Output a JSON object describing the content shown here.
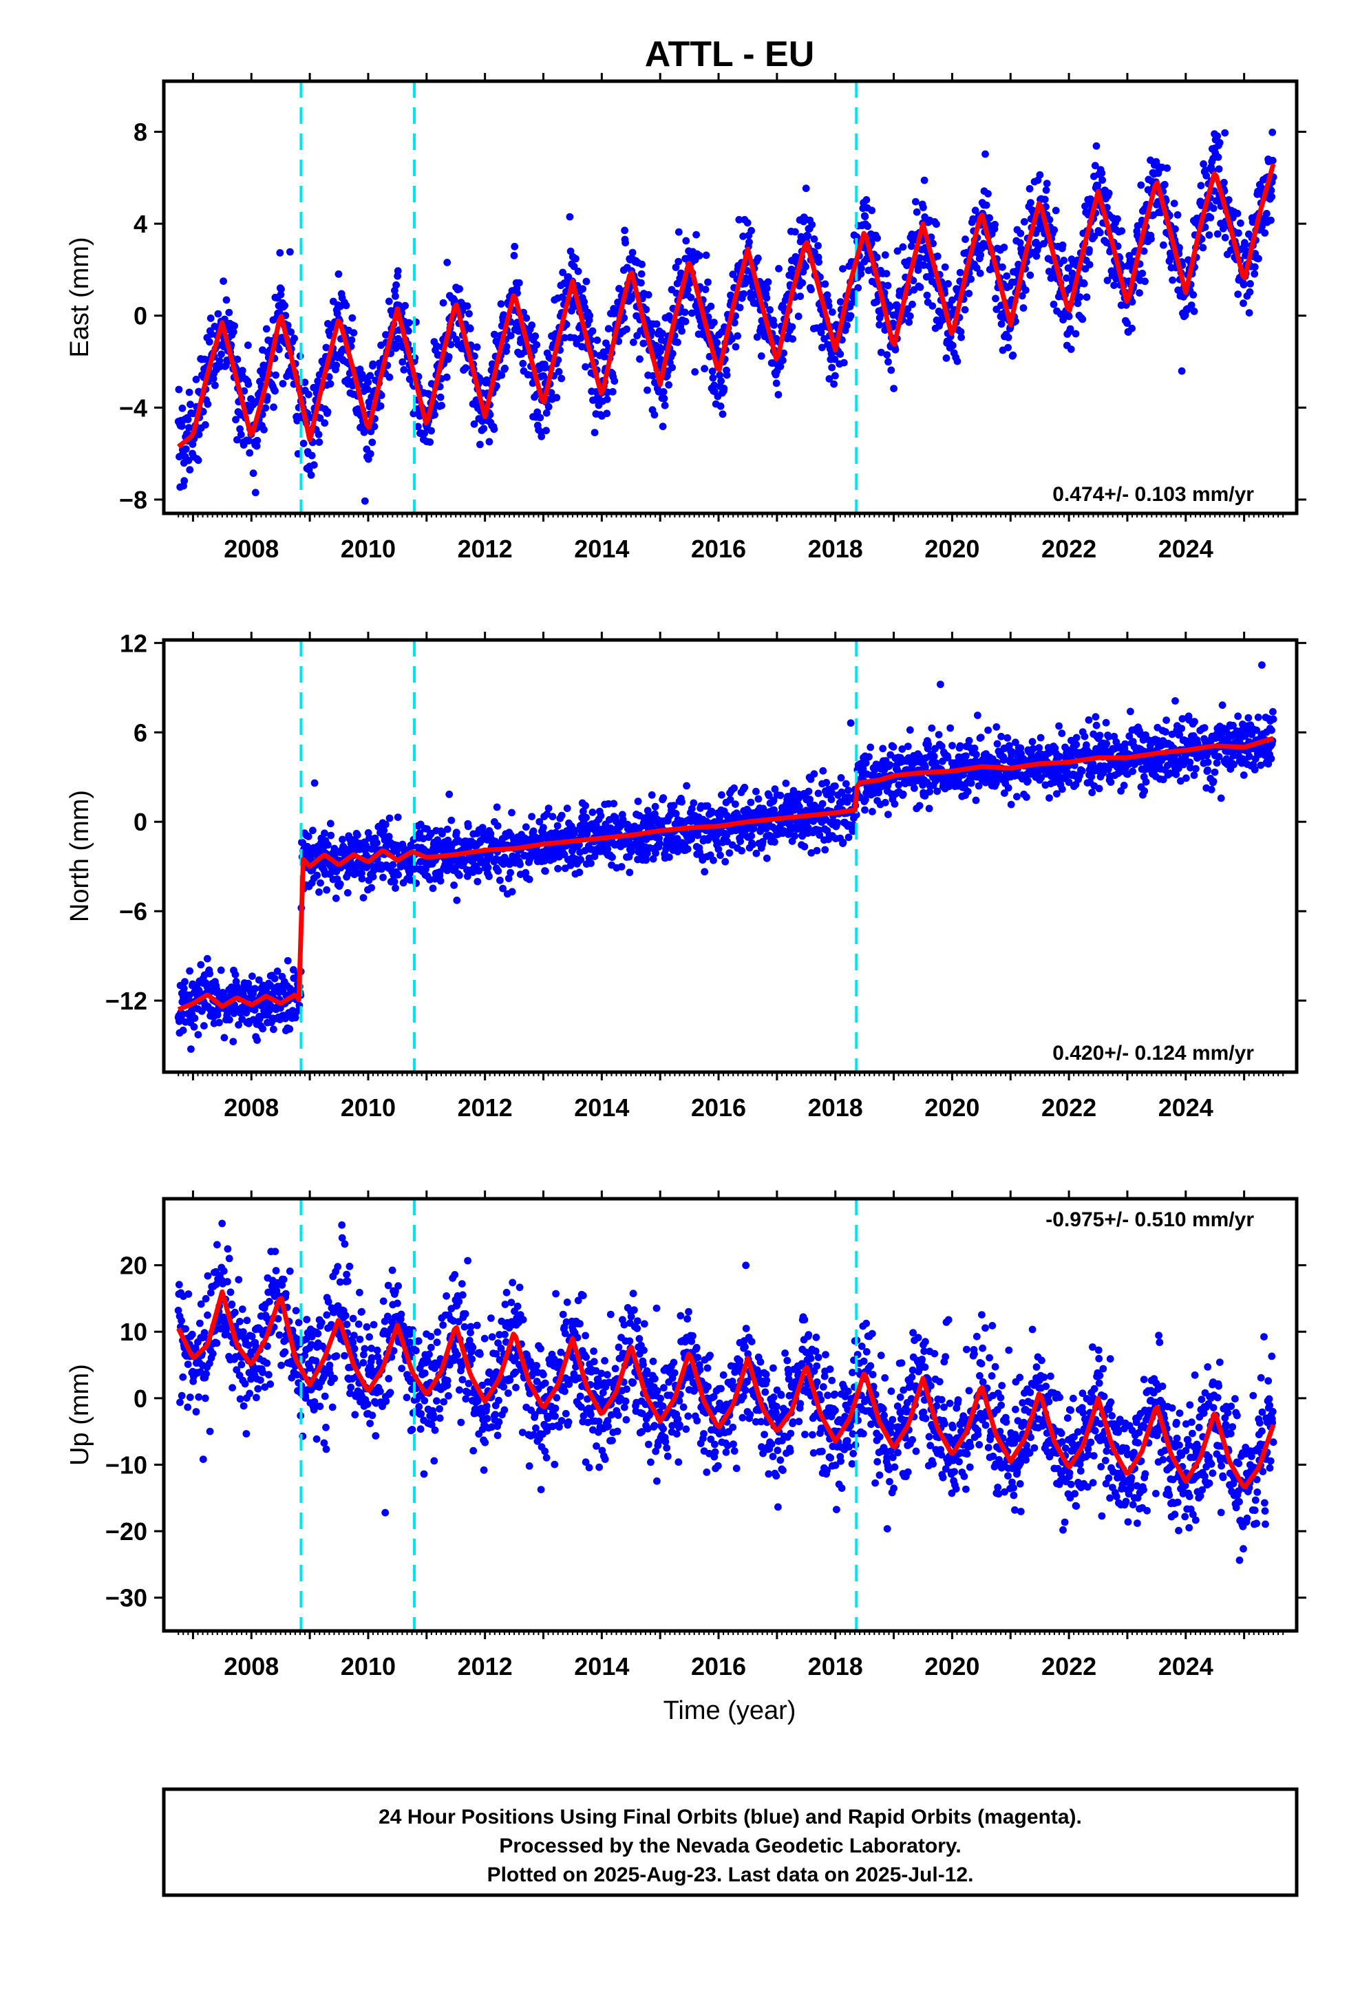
{
  "title": "ATTL - EU",
  "footer": {
    "line1": "24 Hour Positions Using Final Orbits (blue) and Rapid Orbits (magenta).",
    "line2": "Processed by the Nevada Geodetic Laboratory.",
    "line3": "Plotted on 2025-Aug-23. Last data on 2025-Jul-12."
  },
  "colors": {
    "points": "#0000ff",
    "fit": "#ff0000",
    "breaks": "#00e5ee",
    "frame": "#000000"
  },
  "chart_data": [
    {
      "type": "scatter",
      "name": "east",
      "ylabel": "East (mm)",
      "xlabel": "",
      "xlim": [
        2006.5,
        2025.9
      ],
      "ylim": [
        -8.6,
        10.2
      ],
      "xticks": [
        2008,
        2010,
        2012,
        2014,
        2016,
        2018,
        2020,
        2022,
        2024
      ],
      "yticks": [
        -8,
        -4,
        0,
        4,
        8
      ],
      "yticklabels": [
        "−8",
        "−4",
        "0",
        "4",
        "8"
      ],
      "rate_label": "0.474+/- 0.103 mm/yr",
      "rate_position": "bottom-right",
      "breaks": [
        2008.85,
        2010.79,
        2018.36
      ],
      "fit": {
        "x": [
          2006.75,
          2007.0,
          2007.25,
          2007.5,
          2007.75,
          2008.0,
          2008.25,
          2008.5,
          2008.75,
          2009.0,
          2009.25,
          2009.5,
          2009.75,
          2010.0,
          2010.25,
          2010.5,
          2010.75,
          2011.0,
          2011.25,
          2011.5,
          2011.75,
          2012.0,
          2012.25,
          2012.5,
          2012.75,
          2013.0,
          2013.25,
          2013.5,
          2013.75,
          2014.0,
          2014.25,
          2014.5,
          2014.75,
          2015.0,
          2015.25,
          2015.5,
          2015.75,
          2016.0,
          2016.25,
          2016.5,
          2016.75,
          2017.0,
          2017.25,
          2017.5,
          2017.75,
          2018.0,
          2018.25,
          2018.5,
          2018.75,
          2019.0,
          2019.25,
          2019.5,
          2019.75,
          2020.0,
          2020.25,
          2020.5,
          2020.75,
          2021.0,
          2021.25,
          2021.5,
          2021.75,
          2022.0,
          2022.25,
          2022.5,
          2022.75,
          2023.0,
          2023.25,
          2023.5,
          2023.75,
          2024.0,
          2024.25,
          2024.5,
          2024.75,
          2025.0,
          2025.25,
          2025.5
        ],
        "y": [
          -5.7,
          -5.2,
          -2.5,
          -0.3,
          -2.8,
          -5.3,
          -3.0,
          0.1,
          -2.5,
          -5.4,
          -2.6,
          -0.1,
          -2.4,
          -5.0,
          -2.3,
          0.3,
          -2.2,
          -4.8,
          -2.0,
          0.6,
          -1.9,
          -4.4,
          -1.6,
          1.0,
          -1.5,
          -3.9,
          -1.1,
          1.5,
          -1.1,
          -3.5,
          -0.6,
          2.0,
          -0.6,
          -3.0,
          -0.1,
          2.4,
          -0.1,
          -2.5,
          0.4,
          2.9,
          0.4,
          -2.0,
          0.9,
          3.3,
          0.9,
          -1.5,
          1.4,
          3.7,
          1.3,
          -1.4,
          1.5,
          4.0,
          1.6,
          -0.9,
          2.0,
          4.5,
          2.1,
          -0.4,
          2.6,
          5.0,
          2.5,
          0.1,
          2.9,
          5.4,
          3.1,
          0.5,
          3.4,
          5.9,
          3.5,
          1.0,
          3.9,
          6.3,
          4.0,
          1.5,
          4.3,
          6.6
        ]
      }
    },
    {
      "type": "scatter",
      "name": "north",
      "ylabel": "North (mm)",
      "xlabel": "",
      "xlim": [
        2006.5,
        2025.9
      ],
      "ylim": [
        -16.8,
        12.2
      ],
      "xticks": [
        2008,
        2010,
        2012,
        2014,
        2016,
        2018,
        2020,
        2022,
        2024
      ],
      "yticks": [
        -12,
        -6,
        0,
        6,
        12
      ],
      "yticklabels": [
        "−12",
        "−6",
        "0",
        "6",
        "12"
      ],
      "rate_label": "0.420+/- 0.124 mm/yr",
      "rate_position": "bottom-right",
      "breaks": [
        2008.85,
        2010.79,
        2018.36
      ],
      "fit": {
        "x": [
          2006.75,
          2007.0,
          2007.25,
          2007.5,
          2007.75,
          2008.0,
          2008.25,
          2008.5,
          2008.75,
          2008.84,
          2008.86,
          2009.0,
          2009.25,
          2009.5,
          2009.75,
          2010.0,
          2010.25,
          2010.5,
          2010.75,
          2011.0,
          2011.5,
          2012.0,
          2012.5,
          2013.0,
          2013.5,
          2014.0,
          2014.5,
          2015.0,
          2015.5,
          2016.0,
          2016.5,
          2017.0,
          2017.5,
          2018.0,
          2018.34,
          2018.38,
          2018.75,
          2019.0,
          2019.5,
          2020.0,
          2020.5,
          2021.0,
          2021.5,
          2022.0,
          2022.5,
          2023.0,
          2023.5,
          2024.0,
          2024.5,
          2025.0,
          2025.5
        ],
        "y": [
          -12.6,
          -12.2,
          -11.6,
          -12.4,
          -11.8,
          -12.3,
          -11.7,
          -12.2,
          -11.6,
          -12.1,
          -2.4,
          -3.0,
          -2.2,
          -2.9,
          -2.2,
          -2.7,
          -1.9,
          -2.6,
          -2.0,
          -2.4,
          -2.2,
          -1.9,
          -1.8,
          -1.5,
          -1.3,
          -1.1,
          -0.9,
          -0.6,
          -0.4,
          -0.3,
          0.0,
          0.2,
          0.4,
          0.6,
          0.8,
          2.6,
          2.8,
          3.1,
          3.3,
          3.4,
          3.7,
          3.6,
          3.9,
          4.0,
          4.3,
          4.3,
          4.6,
          4.8,
          5.1,
          5.0,
          5.6
        ]
      }
    },
    {
      "type": "scatter",
      "name": "up",
      "ylabel": "Up (mm)",
      "xlabel": "Time (year)",
      "xlim": [
        2006.5,
        2025.9
      ],
      "ylim": [
        -35,
        30
      ],
      "xticks": [
        2008,
        2010,
        2012,
        2014,
        2016,
        2018,
        2020,
        2022,
        2024
      ],
      "yticks": [
        -30,
        -20,
        -10,
        0,
        10,
        20
      ],
      "yticklabels": [
        "−30",
        "−20",
        "−10",
        "0",
        "10",
        "20"
      ],
      "rate_label": "-0.975+/- 0.510 mm/yr",
      "rate_position": "top-right",
      "breaks": [
        2008.85,
        2010.79,
        2018.36
      ],
      "fit": {
        "x": [
          2006.75,
          2007.0,
          2007.25,
          2007.5,
          2007.75,
          2008.0,
          2008.25,
          2008.5,
          2008.75,
          2009.0,
          2009.25,
          2009.5,
          2009.75,
          2010.0,
          2010.25,
          2010.5,
          2010.75,
          2011.0,
          2011.25,
          2011.5,
          2011.75,
          2012.0,
          2012.25,
          2012.5,
          2012.75,
          2013.0,
          2013.25,
          2013.5,
          2013.75,
          2014.0,
          2014.25,
          2014.5,
          2014.75,
          2015.0,
          2015.25,
          2015.5,
          2015.75,
          2016.0,
          2016.25,
          2016.5,
          2016.75,
          2017.0,
          2017.25,
          2017.5,
          2017.75,
          2018.0,
          2018.25,
          2018.5,
          2018.75,
          2019.0,
          2019.25,
          2019.5,
          2019.75,
          2020.0,
          2020.25,
          2020.5,
          2020.75,
          2021.0,
          2021.25,
          2021.5,
          2021.75,
          2022.0,
          2022.25,
          2022.5,
          2022.75,
          2023.0,
          2023.25,
          2023.5,
          2023.75,
          2024.0,
          2024.25,
          2024.5,
          2024.75,
          2025.0,
          2025.25,
          2025.5
        ],
        "y": [
          10.5,
          6.0,
          8.0,
          16.0,
          8.0,
          5.0,
          9.0,
          15.5,
          6.0,
          2.0,
          6.0,
          12.0,
          5.0,
          1.0,
          4.5,
          11.0,
          4.0,
          0.5,
          4.0,
          11.0,
          3.5,
          -0.5,
          3.0,
          10.0,
          2.5,
          -1.5,
          2.0,
          9.0,
          1.5,
          -2.5,
          1.0,
          8.0,
          0.5,
          -3.5,
          0.0,
          7.0,
          -0.5,
          -4.5,
          -1.0,
          6.0,
          -1.5,
          -5.0,
          -2.0,
          5.0,
          -2.5,
          -6.5,
          -3.0,
          4.0,
          -3.5,
          -7.5,
          -4.0,
          3.0,
          -4.5,
          -8.5,
          -5.0,
          2.0,
          -5.5,
          -9.5,
          -6.0,
          1.0,
          -6.5,
          -10.5,
          -7.0,
          0.0,
          -7.5,
          -11.5,
          -8.0,
          -1.0,
          -8.5,
          -12.5,
          -9.0,
          -2.0,
          -9.5,
          -13.5,
          -10.5,
          -4.0
        ]
      }
    }
  ]
}
